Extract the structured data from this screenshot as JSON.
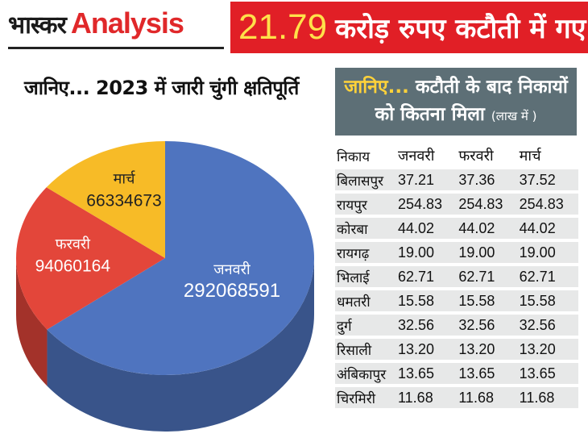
{
  "header": {
    "brand_hindi": "भास्कर",
    "brand_english": "Analysis",
    "banner_number": "21.79",
    "banner_text": "करोड़ रुपए कटौती में गए"
  },
  "pie_title": "जानिए... 2023 में जारी चुंगी क्षतिपूर्ति",
  "chart_data": {
    "type": "pie",
    "title": "जानिए... 2023 में जारी चुंगी क्षतिपूर्ति",
    "slices": [
      {
        "label": "जनवरी",
        "value": 292068591,
        "display": "292068591",
        "color": "#4f74bf"
      },
      {
        "label": "फरवरी",
        "value": 94060164,
        "display": "94060164",
        "color": "#e3463a"
      },
      {
        "label": "मार्च",
        "value": 66334673,
        "display": "66334673",
        "color": "#f7bb27"
      }
    ]
  },
  "table": {
    "heading_highlight": "जानिए...",
    "heading_rest": "कटौती के बाद निकायों",
    "heading_line2": "को कितना मिला",
    "unit": "(लाख में )",
    "columns": [
      "निकाय",
      "जनवरी",
      "फरवरी",
      "मार्च"
    ],
    "rows": [
      [
        "बिलासपुर",
        "37.21",
        "37.36",
        "37.52"
      ],
      [
        "रायपुर",
        "254.83",
        "254.83",
        "254.83"
      ],
      [
        "कोरबा",
        "44.02",
        "44.02",
        "44.02"
      ],
      [
        "रायगढ़",
        "19.00",
        "19.00",
        "19.00"
      ],
      [
        "भिलाई",
        "62.71",
        "62.71",
        "62.71"
      ],
      [
        "धमतरी",
        "15.58",
        "15.58",
        "15.58"
      ],
      [
        "दुर्ग",
        "32.56",
        "32.56",
        "32.56"
      ],
      [
        "रिसाली",
        "13.20",
        "13.20",
        "13.20"
      ],
      [
        "अंबिकापुर",
        "13.65",
        "13.65",
        "13.65"
      ],
      [
        "चिरमिरी",
        "11.68",
        "11.68",
        "11.68"
      ]
    ]
  }
}
